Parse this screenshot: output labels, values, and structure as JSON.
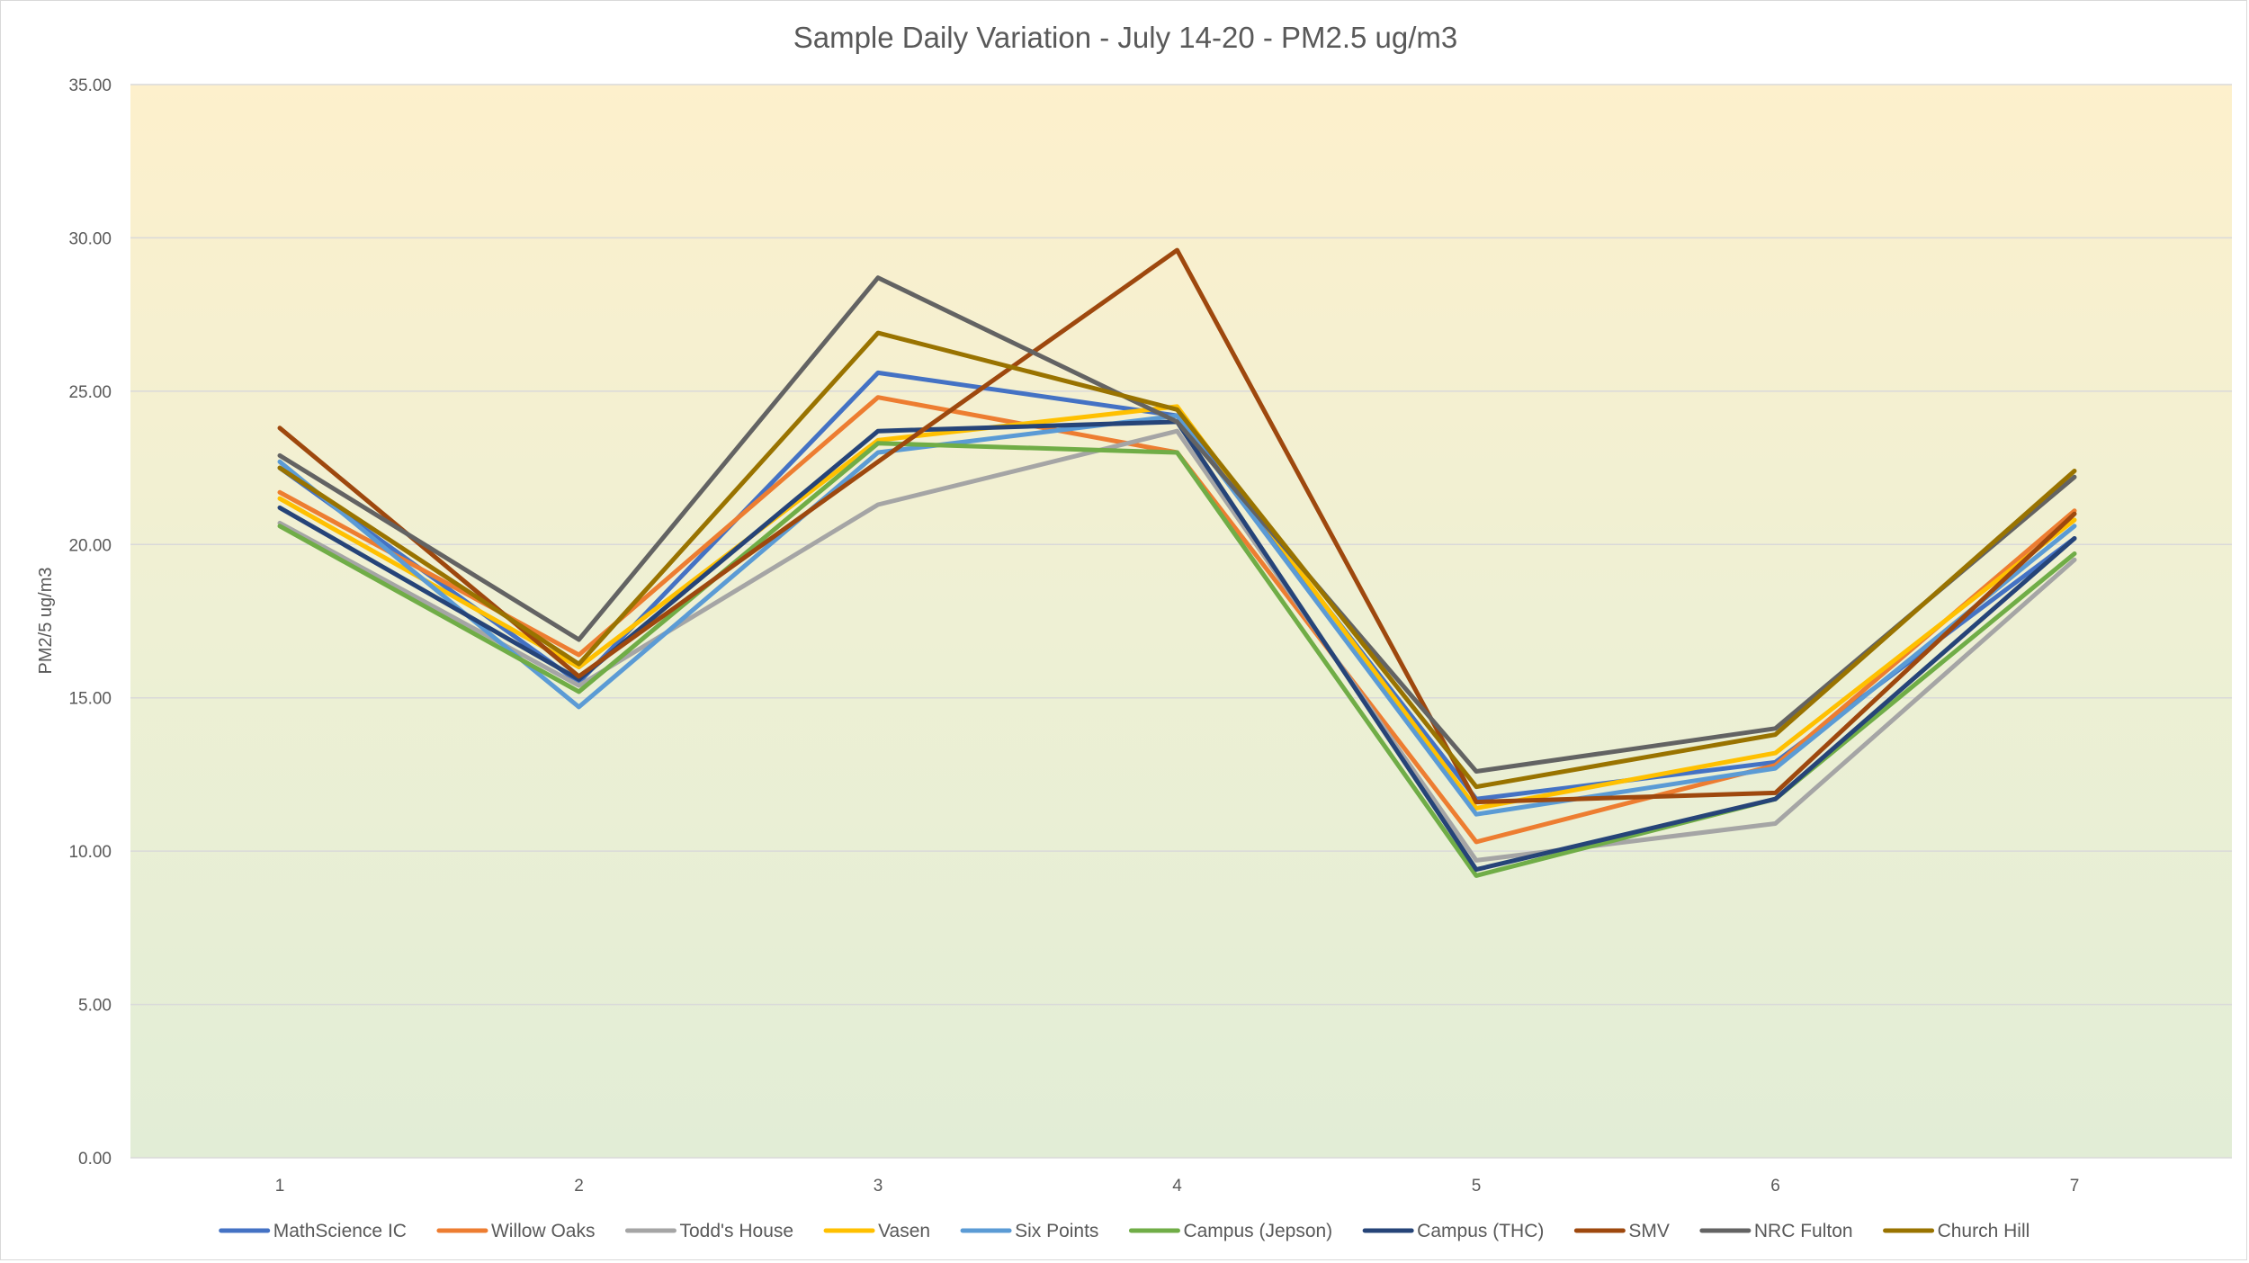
{
  "chart_data": {
    "type": "line",
    "title": "Sample Daily Variation - July 14-20 - PM2.5 ug/m3",
    "xlabel": "",
    "ylabel": "PM2/5 ug/m3",
    "ylim": [
      0,
      35
    ],
    "y_ticks": [
      "0.00",
      "5.00",
      "10.00",
      "15.00",
      "20.00",
      "25.00",
      "30.00",
      "35.00"
    ],
    "categories": [
      "1",
      "2",
      "3",
      "4",
      "5",
      "6",
      "7"
    ],
    "grid": true,
    "legend_position": "bottom",
    "background": "gradient yellow (top) to green (bottom)",
    "series": [
      {
        "name": "MathScience IC",
        "color": "#4472C4",
        "values": [
          22.5,
          15.5,
          25.6,
          24.2,
          11.7,
          12.9,
          20.2
        ]
      },
      {
        "name": "Willow Oaks",
        "color": "#ED7D31",
        "values": [
          21.7,
          16.4,
          24.8,
          23.0,
          10.3,
          12.8,
          21.1
        ]
      },
      {
        "name": "Todd's House",
        "color": "#A5A5A5",
        "values": [
          20.7,
          15.4,
          21.3,
          23.7,
          9.7,
          10.9,
          19.5
        ]
      },
      {
        "name": "Vasen",
        "color": "#FFC000",
        "values": [
          21.5,
          16.0,
          23.4,
          24.5,
          11.4,
          13.2,
          20.8
        ]
      },
      {
        "name": "Six Points",
        "color": "#5B9BD5",
        "values": [
          22.7,
          14.7,
          23.0,
          24.2,
          11.2,
          12.7,
          20.6
        ]
      },
      {
        "name": "Campus (Jepson)",
        "color": "#70AD47",
        "values": [
          20.6,
          15.2,
          23.3,
          23.0,
          9.2,
          11.7,
          19.7
        ]
      },
      {
        "name": "Campus (THC)",
        "color": "#264478",
        "values": [
          21.2,
          15.6,
          23.7,
          24.0,
          9.4,
          11.7,
          20.2
        ]
      },
      {
        "name": "SMV",
        "color": "#9E480E",
        "values": [
          23.8,
          15.7,
          22.7,
          29.6,
          11.6,
          11.9,
          21.0
        ]
      },
      {
        "name": "NRC Fulton",
        "color": "#636363",
        "values": [
          22.9,
          16.9,
          28.7,
          24.0,
          12.6,
          14.0,
          22.2
        ]
      },
      {
        "name": "Church Hill",
        "color": "#997300",
        "values": [
          22.5,
          16.1,
          26.9,
          24.4,
          12.1,
          13.8,
          22.4
        ]
      }
    ]
  }
}
